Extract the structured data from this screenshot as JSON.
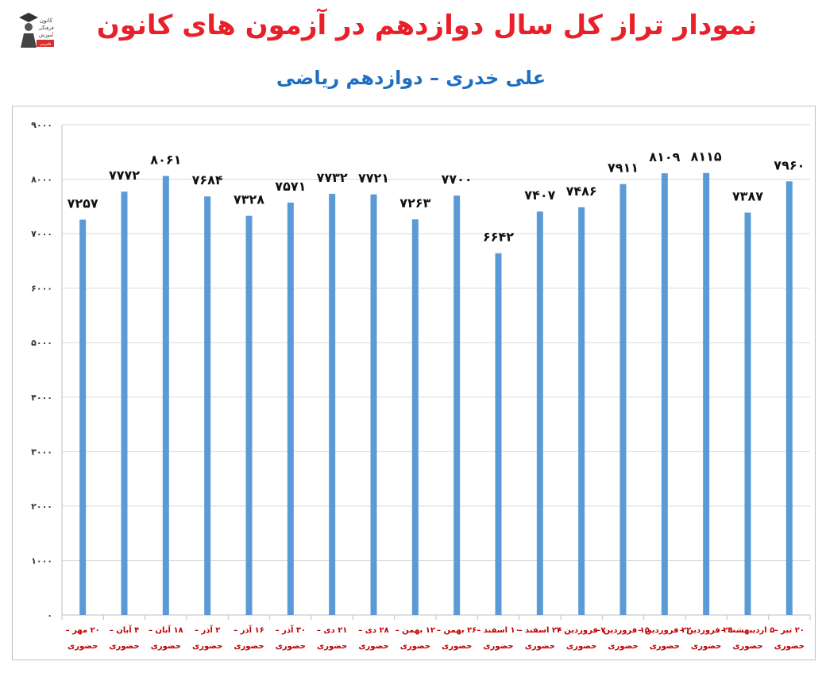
{
  "title": "نمودار تراز کل سال دوازدهم در آزمون های کانون",
  "subtitle": "علی خدری – دوازدهم ریاضی",
  "logo": {
    "lines": [
      "کانون",
      "فرهنگی",
      "آموزش"
    ],
    "badge": "قلم‌چی"
  },
  "colors": {
    "title": "#e8202a",
    "subtitle": "#1f6fc0",
    "bar": "#5b9bd5",
    "grid": "#d9d9d9",
    "xlabel": "#c00000"
  },
  "chart_data": {
    "type": "bar",
    "title": "",
    "xlabel": "",
    "ylabel": "",
    "ylim": [
      0,
      9000
    ],
    "yticks": [
      "۰",
      "۱۰۰۰",
      "۲۰۰۰",
      "۳۰۰۰",
      "۴۰۰۰",
      "۵۰۰۰",
      "۶۰۰۰",
      "۷۰۰۰",
      "۸۰۰۰",
      "۹۰۰۰"
    ],
    "grid": true,
    "legend": "none",
    "categories": [
      [
        "۲۰ مهر –",
        "حضوری"
      ],
      [
        "۴ آبان –",
        "حضوری"
      ],
      [
        "۱۸ آبان –",
        "حضوری"
      ],
      [
        "۲ آذر –",
        "حضوری"
      ],
      [
        "۱۶ آذر –",
        "حضوری"
      ],
      [
        "۳۰ آذر –",
        "حضوری"
      ],
      [
        "۲۱ دی –",
        "حضوری"
      ],
      [
        "۲۸ دی –",
        "حضوری"
      ],
      [
        "۱۲ بهمن –",
        "حضوری"
      ],
      [
        "۲۶ بهمن –",
        "حضوری"
      ],
      [
        "۱۰ اسفند –",
        "حضوری"
      ],
      [
        "۲۴ اسفند –",
        "حضوری"
      ],
      [
        "۷ فروردین –",
        "حضوری"
      ],
      [
        "۱۵ فروردین –",
        "حضوری"
      ],
      [
        "۲۲ فروردین –",
        "حضوری"
      ],
      [
        "۲۹ فروردین –",
        "حضوری"
      ],
      [
        "۵ اردیبهشت –",
        "حضوری"
      ],
      [
        "۲۰ تیر –",
        "حضوری"
      ]
    ],
    "values": [
      7257,
      7772,
      8061,
      7684,
      7328,
      7571,
      7732,
      7721,
      7263,
      7700,
      6642,
      7407,
      7486,
      7911,
      8109,
      8115,
      7387,
      7960
    ],
    "data_labels": [
      "۷۲۵۷",
      "۷۷۷۲",
      "۸۰۶۱",
      "۷۶۸۴",
      "۷۳۲۸",
      "۷۵۷۱",
      "۷۷۳۲",
      "۷۷۲۱",
      "۷۲۶۳",
      "۷۷۰۰",
      "۶۶۴۲",
      "۷۴۰۷",
      "۷۴۸۶",
      "۷۹۱۱",
      "۸۱۰۹",
      "۸۱۱۵",
      "۷۳۸۷",
      "۷۹۶۰"
    ]
  }
}
